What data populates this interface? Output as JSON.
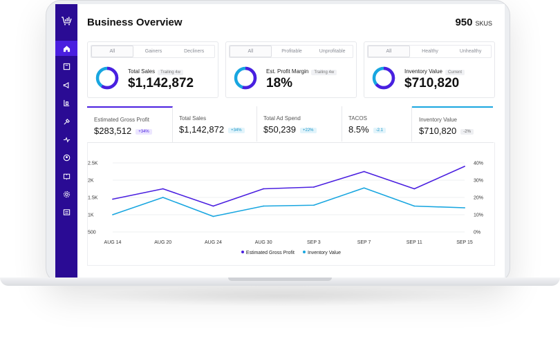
{
  "header": {
    "title": "Business Overview",
    "sku_count": "950",
    "sku_unit": "SKUS"
  },
  "sidebar": {
    "items": [
      "home-icon",
      "inventory-icon",
      "megaphone-icon",
      "forklift-icon",
      "tools-icon",
      "pulse-icon",
      "user-icon",
      "book-icon",
      "gear-icon",
      "list-icon"
    ]
  },
  "cards": [
    {
      "filters": [
        "All",
        "Gainers",
        "Decliners"
      ],
      "label": "Total Sales",
      "tag": "Trailing 4w",
      "value": "$1,142,872"
    },
    {
      "filters": [
        "All",
        "Profitable",
        "Unprofitable"
      ],
      "label": "Est. Profit Margin",
      "tag": "Trailing 4w",
      "value": "18%"
    },
    {
      "filters": [
        "All",
        "Healthy",
        "Unhealthy"
      ],
      "label": "Inventory Value",
      "tag": "Current",
      "value": "$710,820"
    }
  ],
  "metrics": [
    {
      "label": "Estimated Gross Profit",
      "value": "$283,512",
      "change": "+34%"
    },
    {
      "label": "Total Sales",
      "value": "$1,142,872",
      "change": "+34%"
    },
    {
      "label": "Total Ad Spend",
      "value": "$50,239",
      "change": "+22%"
    },
    {
      "label": "TACOS",
      "value": "8.5%",
      "change": "-2.1"
    },
    {
      "label": "Inventory Value",
      "value": "$710,820",
      "change": "-2%"
    }
  ],
  "colors": {
    "purple": "#4a1fe0",
    "blue": "#18a6e0",
    "sidebar": "#2a0b94"
  },
  "chart_data": {
    "type": "line",
    "x": [
      "AUG 14",
      "AUG 20",
      "AUG 24",
      "AUG 30",
      "SEP 3",
      "SEP 7",
      "SEP  11",
      "SEP 15"
    ],
    "yticks_left": [
      "2.5K",
      "2K",
      "1.5K",
      "1K",
      "500"
    ],
    "yticks_right": [
      "40%",
      "30%",
      "20%",
      "10%",
      "0%"
    ],
    "ylim_left": [
      500,
      2500
    ],
    "ylim_right": [
      0,
      40
    ],
    "grid": true,
    "legend": "bottom-center",
    "series": [
      {
        "name": "Estimated Gross Profit",
        "axis": "left",
        "color": "#4a1fe0",
        "values": [
          1450,
          1750,
          1250,
          1750,
          1800,
          2250,
          1750,
          2400
        ]
      },
      {
        "name": "Inventory Value",
        "axis": "right",
        "color": "#18a6e0",
        "values": [
          10,
          20,
          9,
          15,
          15.5,
          25.5,
          15,
          14
        ]
      }
    ]
  }
}
